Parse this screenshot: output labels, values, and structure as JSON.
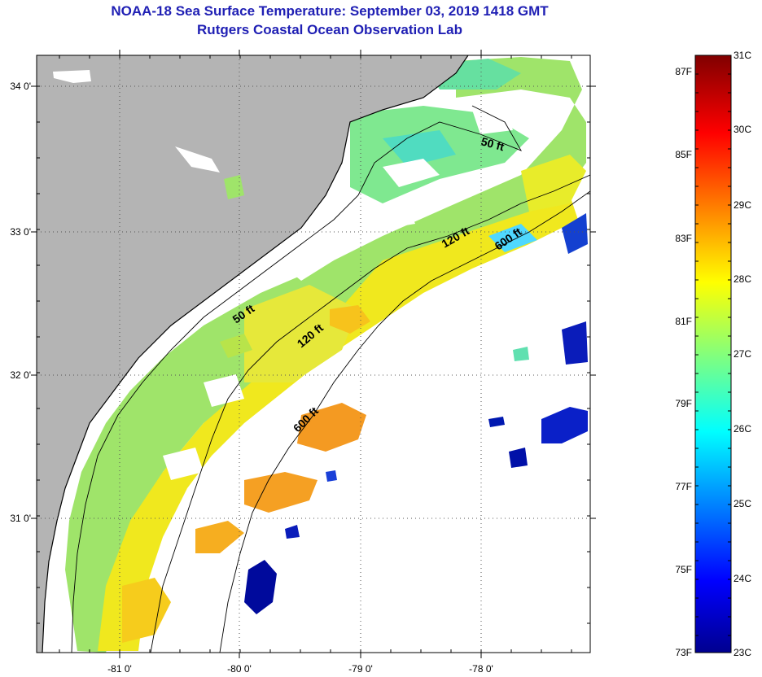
{
  "title_line1": "NOAA-18 Sea Surface Temperature:  September 03, 2019 1418 GMT",
  "title_line2": "Rutgers Coastal Ocean Observation Lab",
  "map": {
    "lon_ticks": [
      "-81 0'",
      "-80 0'",
      "-79 0'",
      "-78 0'"
    ],
    "lat_ticks": [
      "34 0'",
      "33 0'",
      "32 0'",
      "31 0'"
    ],
    "isobaths": [
      "50 ft",
      "50 ft",
      "120 ft",
      "120 ft",
      "600 ft",
      "600 ft"
    ],
    "colors": {
      "land": "#b4b4b4",
      "no_data": "#ffffff"
    }
  },
  "colorbar": {
    "celsius_labels": [
      "31C",
      "30C",
      "29C",
      "28C",
      "27C",
      "26C",
      "25C",
      "24C",
      "23C"
    ],
    "fahrenheit_labels": [
      "87F",
      "85F",
      "83F",
      "81F",
      "79F",
      "77F",
      "75F",
      "73F"
    ],
    "range_c": [
      23,
      31
    ]
  }
}
